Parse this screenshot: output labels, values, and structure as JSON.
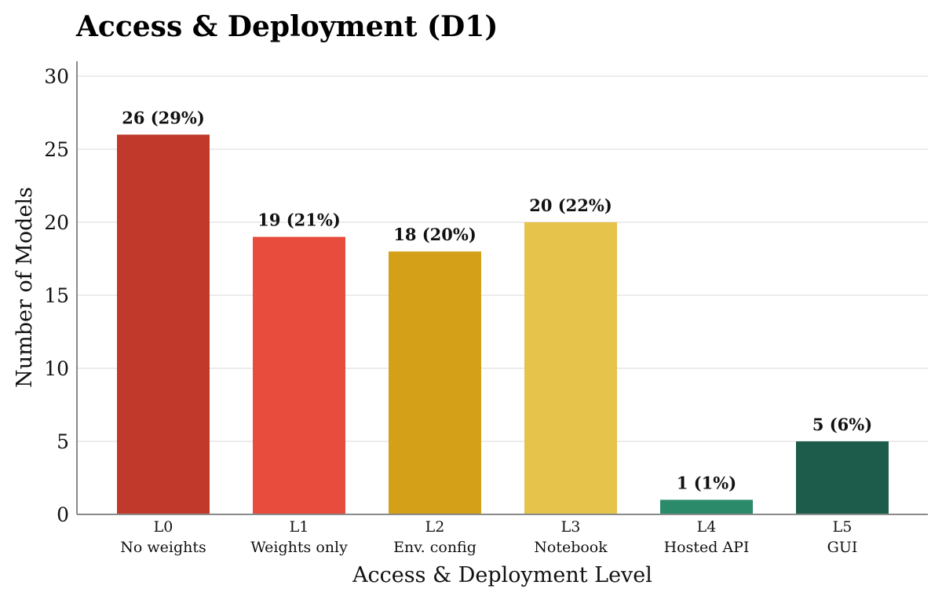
{
  "chart_data": {
    "type": "bar",
    "title": "Access & Deployment (D1)",
    "xlabel": "Access & Deployment Level",
    "ylabel": "Number of Models",
    "ylim": [
      0,
      30
    ],
    "yticks": [
      0,
      5,
      10,
      15,
      20,
      25,
      30
    ],
    "grid": "horizontal",
    "categories": [
      {
        "code": "L0",
        "name": "No weights"
      },
      {
        "code": "L1",
        "name": "Weights only"
      },
      {
        "code": "L2",
        "name": "Env. config"
      },
      {
        "code": "L3",
        "name": "Notebook"
      },
      {
        "code": "L4",
        "name": "Hosted API"
      },
      {
        "code": "L5",
        "name": "GUI"
      }
    ],
    "values": [
      26,
      19,
      18,
      20,
      1,
      5
    ],
    "value_labels": [
      "26 (29%)",
      "19 (21%)",
      "18 (20%)",
      "20 (22%)",
      "1 (1%)",
      "5 (6%)"
    ],
    "colors": [
      "#c0392b",
      "#e74c3c",
      "#d4a017",
      "#e6c34a",
      "#2a8a6a",
      "#1d5c4a"
    ]
  }
}
